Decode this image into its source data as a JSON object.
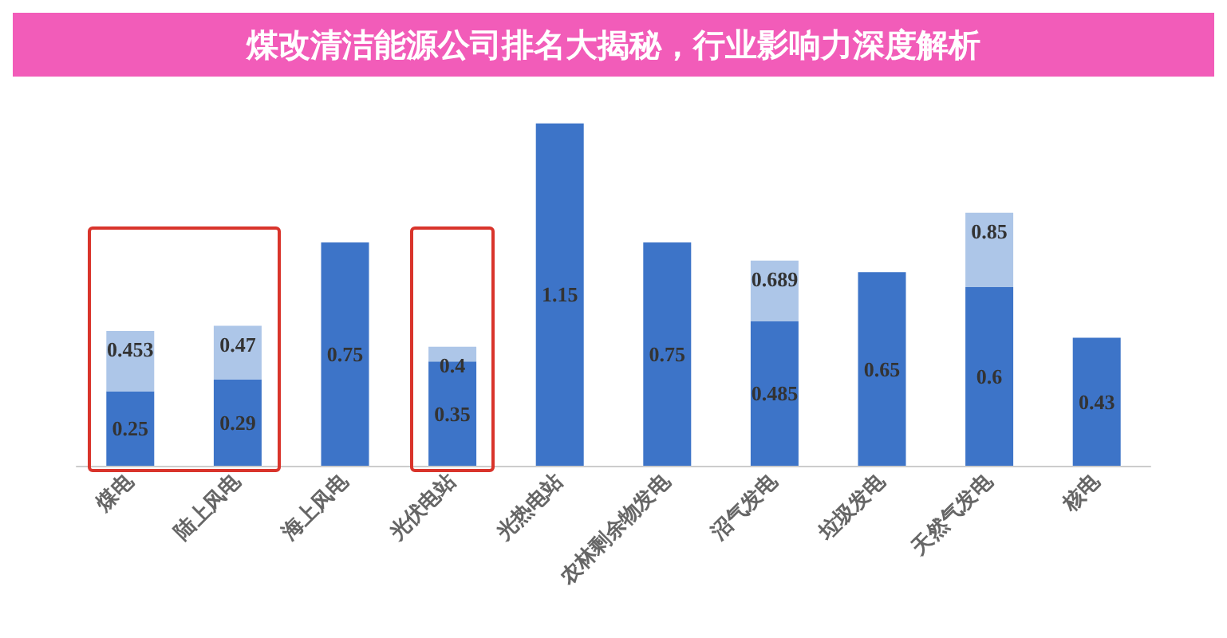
{
  "chart_data": {
    "type": "bar",
    "title": "煤改清洁能源公司排名大揭秘，行业影响力深度解析",
    "categories": [
      "煤电",
      "陆上风电",
      "海上风电",
      "光伏电站",
      "光热电站",
      "农林剩余物发电",
      "沼气发电",
      "垃圾发电",
      "天然气发电",
      "核电"
    ],
    "stacked": true,
    "series": [
      {
        "color": "#3d74c8",
        "values": [
          0.25,
          0.29,
          0.75,
          0.35,
          1.15,
          0.75,
          0.485,
          0.65,
          0.6,
          0.43
        ],
        "value_labels": [
          "0.25",
          "0.29",
          "0.75",
          "0.35",
          "1.15",
          "0.75",
          "0.485",
          "0.65",
          "0.6",
          "0.43"
        ]
      },
      {
        "color": "#adc6e8",
        "values": [
          0.203,
          0.18,
          null,
          0.05,
          null,
          null,
          0.204,
          null,
          0.25,
          null
        ]
      }
    ],
    "totals": [
      "0.453",
      "0.47",
      null,
      "0.4",
      null,
      null,
      "0.689",
      null,
      "0.85",
      null
    ],
    "grid": false
  }
}
